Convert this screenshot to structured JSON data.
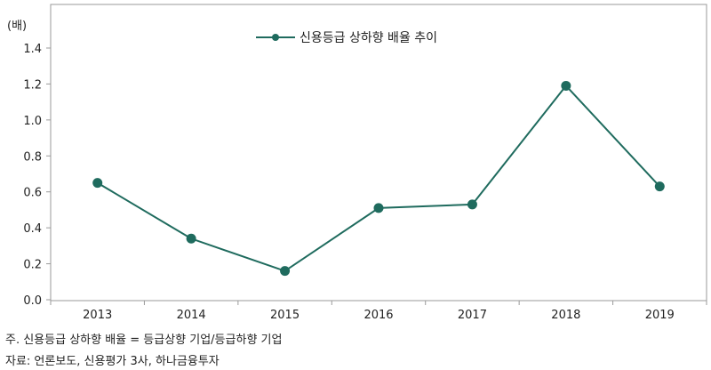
{
  "chart_data": {
    "type": "line",
    "y_unit": "(배)",
    "categories": [
      "2013",
      "2014",
      "2015",
      "2016",
      "2017",
      "2018",
      "2019"
    ],
    "series": [
      {
        "name": "신용등급 상하향 배율 추이",
        "values": [
          0.65,
          0.34,
          0.16,
          0.51,
          0.53,
          1.19,
          0.63
        ],
        "color": "#1f6b5e"
      }
    ],
    "ylim": [
      0,
      1.4
    ],
    "yticks": [
      "0.0",
      "0.2",
      "0.4",
      "0.6",
      "0.8",
      "1.0",
      "1.2",
      "1.4"
    ],
    "grid": false,
    "legend_position": "top-center"
  },
  "notes": {
    "note": "주. 신용등급 상하향 배율 = 등급상향 기업/등급하향 기업",
    "source": "자료: 언론보도, 신용평가 3사, 하나금융투자"
  }
}
